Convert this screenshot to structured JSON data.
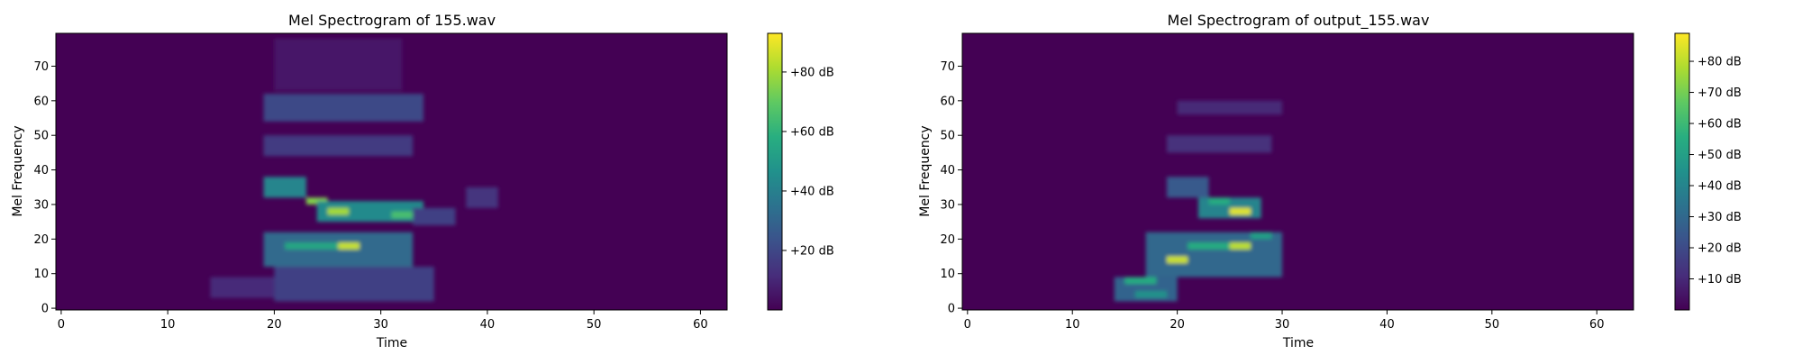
{
  "chart_data": [
    {
      "type": "heatmap",
      "title": "Mel Spectrogram of 155.wav",
      "xlabel": "Time",
      "ylabel": "Mel Frequency",
      "xlim": [
        -0.5,
        62.5
      ],
      "ylim": [
        -0.5,
        79.5
      ],
      "xticks": [
        0,
        10,
        20,
        30,
        40,
        50,
        60
      ],
      "yticks": [
        0,
        10,
        20,
        30,
        40,
        50,
        60,
        70
      ],
      "colormap": "viridis",
      "colorbar": {
        "min": 0,
        "max": 93,
        "ticks": [
          20,
          40,
          60,
          80
        ],
        "tick_labels": [
          "+20 dB",
          "+40 dB",
          "+60 dB",
          "+80 dB"
        ]
      },
      "grid": false,
      "blobs": [
        {
          "x": [
            14,
            20
          ],
          "y": [
            3,
            9
          ],
          "value": 11
        },
        {
          "x": [
            20,
            35
          ],
          "y": [
            2,
            12
          ],
          "value": 18
        },
        {
          "x": [
            19,
            33
          ],
          "y": [
            12,
            22
          ],
          "value": 32
        },
        {
          "x": [
            21,
            28
          ],
          "y": [
            17,
            19
          ],
          "value": 55
        },
        {
          "x": [
            26,
            28
          ],
          "y": [
            17,
            19
          ],
          "value": 85
        },
        {
          "x": [
            19,
            23
          ],
          "y": [
            32,
            38
          ],
          "value": 42
        },
        {
          "x": [
            23,
            25
          ],
          "y": [
            30,
            32
          ],
          "value": 75
        },
        {
          "x": [
            24,
            34
          ],
          "y": [
            25,
            31
          ],
          "value": 44
        },
        {
          "x": [
            25,
            27
          ],
          "y": [
            27,
            29
          ],
          "value": 80
        },
        {
          "x": [
            31,
            33
          ],
          "y": [
            26,
            28
          ],
          "value": 65
        },
        {
          "x": [
            33,
            37
          ],
          "y": [
            24,
            29
          ],
          "value": 18
        },
        {
          "x": [
            38,
            41
          ],
          "y": [
            29,
            35
          ],
          "value": 14
        },
        {
          "x": [
            19,
            33
          ],
          "y": [
            44,
            50
          ],
          "value": 16
        },
        {
          "x": [
            19,
            34
          ],
          "y": [
            54,
            62
          ],
          "value": 20
        },
        {
          "x": [
            20,
            32
          ],
          "y": [
            63,
            78
          ],
          "value": 6
        }
      ]
    },
    {
      "type": "heatmap",
      "title": "Mel Spectrogram of output_155.wav",
      "xlabel": "Time",
      "ylabel": "Mel Frequency",
      "xlim": [
        -0.5,
        63.5
      ],
      "ylim": [
        -0.5,
        79.5
      ],
      "xticks": [
        0,
        10,
        20,
        30,
        40,
        50,
        60
      ],
      "yticks": [
        0,
        10,
        20,
        30,
        40,
        50,
        60,
        70
      ],
      "colormap": "viridis",
      "colorbar": {
        "min": 0,
        "max": 89,
        "ticks": [
          10,
          20,
          30,
          40,
          50,
          60,
          70,
          80
        ],
        "tick_labels": [
          "+10 dB",
          "+20 dB",
          "+30 dB",
          "+40 dB",
          "+50 dB",
          "+60 dB",
          "+70 dB",
          "+80 dB"
        ]
      },
      "grid": false,
      "blobs": [
        {
          "x": [
            14,
            20
          ],
          "y": [
            2,
            9
          ],
          "value": 28
        },
        {
          "x": [
            15,
            18
          ],
          "y": [
            7,
            9
          ],
          "value": 55
        },
        {
          "x": [
            16,
            19
          ],
          "y": [
            3,
            5
          ],
          "value": 45
        },
        {
          "x": [
            17,
            30
          ],
          "y": [
            9,
            22
          ],
          "value": 30
        },
        {
          "x": [
            19,
            21
          ],
          "y": [
            13,
            15
          ],
          "value": 82
        },
        {
          "x": [
            21,
            25
          ],
          "y": [
            17,
            19
          ],
          "value": 55
        },
        {
          "x": [
            25,
            27
          ],
          "y": [
            17,
            19
          ],
          "value": 80
        },
        {
          "x": [
            27,
            29
          ],
          "y": [
            20,
            22
          ],
          "value": 50
        },
        {
          "x": [
            19,
            23
          ],
          "y": [
            32,
            38
          ],
          "value": 25
        },
        {
          "x": [
            22,
            28
          ],
          "y": [
            26,
            32
          ],
          "value": 40
        },
        {
          "x": [
            25,
            27
          ],
          "y": [
            27,
            29
          ],
          "value": 85
        },
        {
          "x": [
            23,
            25
          ],
          "y": [
            30,
            32
          ],
          "value": 55
        },
        {
          "x": [
            19,
            29
          ],
          "y": [
            45,
            50
          ],
          "value": 12
        },
        {
          "x": [
            20,
            30
          ],
          "y": [
            56,
            60
          ],
          "value": 10
        }
      ]
    }
  ]
}
